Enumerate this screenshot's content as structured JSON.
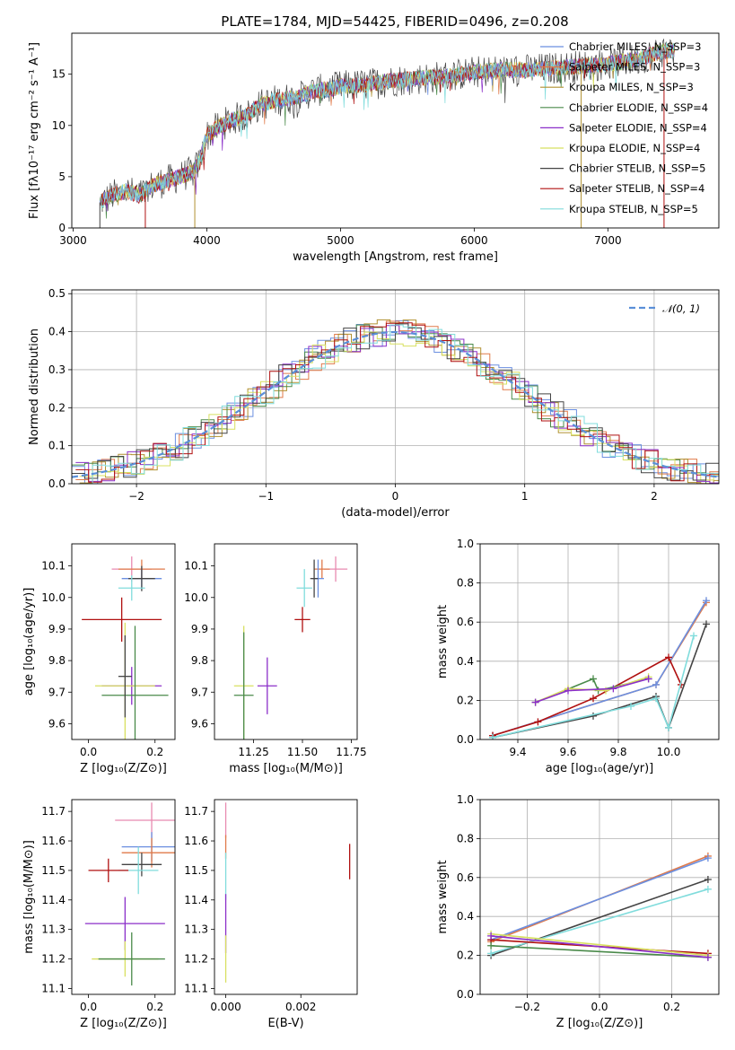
{
  "figure": {
    "title": "PLATE=1784, MJD=54425, FIBERID=0496, z=0.208"
  },
  "colors": {
    "chabrier_miles": "#6b8fe0",
    "salpeter_miles": "#e07a4a",
    "kroupa_miles": "#b09030",
    "chabrier_elodie": "#4a8a4a",
    "salpeter_elodie": "#8b2fc9",
    "kroupa_elodie": "#d8e060",
    "chabrier_stelib": "#444444",
    "salpeter_stelib": "#b01010",
    "kroupa_stelib": "#80dcdc",
    "pink": "#e88ab0",
    "gaussian": "#5a8fd8",
    "grid": "#b0b0b0"
  },
  "chart_data": [
    {
      "id": "spectrum",
      "type": "line",
      "xlabel": "wavelength [Angstrom, rest frame]",
      "ylabel": "Flux [fλ10⁻¹⁷ erg cm⁻² s⁻¹ A⁻¹]",
      "xlim": [
        2990,
        7830
      ],
      "ylim": [
        0,
        19
      ],
      "xticks": [
        "3000",
        "4000",
        "5000",
        "6000",
        "7000"
      ],
      "yticks": [
        "0",
        "5",
        "10",
        "15"
      ],
      "grid": false,
      "legend_position": "top-right",
      "series": [
        {
          "name": "Chabrier MILES, N_SSP=3"
        },
        {
          "name": "Salpeter MILES, N_SSP=3"
        },
        {
          "name": "Kroupa MILES, N_SSP=3"
        },
        {
          "name": "Chabrier ELODIE, N_SSP=4"
        },
        {
          "name": "Salpeter ELODIE, N_SSP=4"
        },
        {
          "name": "Kroupa ELODIE, N_SSP=4"
        },
        {
          "name": "Chabrier STELIB, N_SSP=5"
        },
        {
          "name": "Salpeter STELIB, N_SSP=4"
        },
        {
          "name": "Kroupa STELIB, N_SSP=5"
        }
      ],
      "envelope": [
        [
          3200,
          2.5
        ],
        [
          3300,
          3.2
        ],
        [
          3400,
          3.6
        ],
        [
          3500,
          3.2
        ],
        [
          3600,
          4.2
        ],
        [
          3700,
          4.6
        ],
        [
          3800,
          5.0
        ],
        [
          3900,
          5.5
        ],
        [
          3950,
          6.5
        ],
        [
          4000,
          9.0
        ],
        [
          4100,
          10.0
        ],
        [
          4200,
          10.6
        ],
        [
          4300,
          11.0
        ],
        [
          4400,
          12.0
        ],
        [
          4500,
          12.4
        ],
        [
          4600,
          12.6
        ],
        [
          4700,
          12.8
        ],
        [
          4800,
          13.4
        ],
        [
          4900,
          13.5
        ],
        [
          5000,
          13.8
        ],
        [
          5200,
          14.0
        ],
        [
          5400,
          14.4
        ],
        [
          5600,
          14.6
        ],
        [
          5800,
          14.8
        ],
        [
          6000,
          15.2
        ],
        [
          6200,
          15.4
        ],
        [
          6400,
          15.4
        ],
        [
          6600,
          15.6
        ],
        [
          6800,
          15.8
        ],
        [
          7000,
          16.0
        ],
        [
          7200,
          16.4
        ],
        [
          7400,
          17.2
        ],
        [
          7500,
          17.4
        ]
      ]
    },
    {
      "id": "residuals",
      "type": "histogram",
      "xlabel": "(data-model)/error",
      "ylabel": "Normed distribution",
      "xlim": [
        -2.5,
        2.5
      ],
      "ylim": [
        0,
        0.51
      ],
      "xticks": [
        "−2",
        "−1",
        "0",
        "1",
        "2"
      ],
      "yticks": [
        "0.0",
        "0.1",
        "0.2",
        "0.3",
        "0.4",
        "0.5"
      ],
      "grid": true,
      "legend_label": "𝒩(0, 1)",
      "gaussian": {
        "mean": 0,
        "sigma": 1
      }
    },
    {
      "id": "age_vs_Z",
      "type": "scatter",
      "xlabel": "Z [log₁₀(Z/Z⊙)]",
      "ylabel": "age  [log₁₀(age/yr)]",
      "xlim": [
        -0.05,
        0.26
      ],
      "ylim": [
        9.55,
        10.17
      ],
      "xticks": [
        "0.0",
        "0.2"
      ],
      "yticks": [
        "9.6",
        "9.7",
        "9.8",
        "9.9",
        "10.0",
        "10.1"
      ],
      "points": [
        {
          "c": "pink",
          "x": 0.13,
          "xe": 0.06,
          "y": 10.09,
          "ye": 0.04
        },
        {
          "c": "salpeter_miles",
          "x": 0.16,
          "xe": 0.07,
          "y": 10.09,
          "ye": 0.03
        },
        {
          "c": "chabrier_miles",
          "x": 0.16,
          "xe": 0.06,
          "y": 10.06,
          "ye": 0.03
        },
        {
          "c": "chabrier_stelib",
          "x": 0.16,
          "xe": 0.04,
          "y": 10.06,
          "ye": 0.04
        },
        {
          "c": "kroupa_stelib",
          "x": 0.13,
          "xe": 0.04,
          "y": 10.03,
          "ye": 0.04
        },
        {
          "c": "salpeter_stelib",
          "x": 0.1,
          "xe": 0.12,
          "y": 9.93,
          "ye": 0.07
        },
        {
          "c": "salpeter_elodie",
          "x": 0.13,
          "xe": 0.09,
          "y": 9.72,
          "ye": 0.06
        },
        {
          "c": "kroupa_elodie",
          "x": 0.11,
          "xe": 0.09,
          "y": 9.72,
          "ye": 0.2
        },
        {
          "c": "chabrier_elodie",
          "x": 0.14,
          "xe": 0.1,
          "y": 9.69,
          "ye": 0.22
        },
        {
          "c": "chabrier_stelib",
          "x": 0.11,
          "xe": 0.02,
          "y": 9.75,
          "ye": 0.13
        }
      ]
    },
    {
      "id": "age_vs_mass",
      "type": "scatter",
      "xlabel": "mass [log₁₀(M/M⊙)]",
      "xlim": [
        11.05,
        11.78
      ],
      "ylim": [
        9.55,
        10.17
      ],
      "xticks": [
        "11.25",
        "11.50",
        "11.75"
      ],
      "yticks": [
        "9.6",
        "9.7",
        "9.8",
        "9.9",
        "10.0",
        "10.1"
      ],
      "points": [
        {
          "c": "pink",
          "x": 11.67,
          "xe": 0.06,
          "y": 10.09,
          "ye": 0.04
        },
        {
          "c": "salpeter_miles",
          "x": 11.6,
          "xe": 0.04,
          "y": 10.09,
          "ye": 0.03
        },
        {
          "c": "chabrier_miles",
          "x": 11.58,
          "xe": 0.03,
          "y": 10.06,
          "ye": 0.06
        },
        {
          "c": "chabrier_stelib",
          "x": 11.56,
          "xe": 0.02,
          "y": 10.06,
          "ye": 0.06
        },
        {
          "c": "kroupa_stelib",
          "x": 11.51,
          "xe": 0.04,
          "y": 10.03,
          "ye": 0.06
        },
        {
          "c": "salpeter_stelib",
          "x": 11.5,
          "xe": 0.04,
          "y": 9.93,
          "ye": 0.04
        },
        {
          "c": "salpeter_elodie",
          "x": 11.32,
          "xe": 0.05,
          "y": 9.72,
          "ye": 0.09
        },
        {
          "c": "kroupa_elodie",
          "x": 11.2,
          "xe": 0.05,
          "y": 9.72,
          "ye": 0.19
        },
        {
          "c": "chabrier_elodie",
          "x": 11.2,
          "xe": 0.05,
          "y": 9.69,
          "ye": 0.2
        }
      ]
    },
    {
      "id": "weight_vs_age",
      "type": "line",
      "xlabel": "age  [log₁₀(age/yr)]",
      "ylabel": "mass weight",
      "xlim": [
        9.25,
        10.2
      ],
      "ylim": [
        0,
        1.0
      ],
      "xticks": [
        "9.4",
        "9.6",
        "9.8",
        "10.0"
      ],
      "yticks": [
        "0.0",
        "0.2",
        "0.4",
        "0.6",
        "0.8",
        "1.0"
      ],
      "grid": true,
      "series": [
        {
          "c": "salpeter_miles",
          "pts": [
            [
              9.3,
              0.02
            ],
            [
              9.95,
              0.28
            ],
            [
              10.15,
              0.7
            ]
          ]
        },
        {
          "c": "chabrier_miles",
          "pts": [
            [
              9.3,
              0.02
            ],
            [
              9.95,
              0.28
            ],
            [
              10.15,
              0.71
            ]
          ]
        },
        {
          "c": "salpeter_stelib",
          "pts": [
            [
              9.3,
              0.02
            ],
            [
              9.48,
              0.09
            ],
            [
              9.7,
              0.21
            ],
            [
              10.0,
              0.42
            ],
            [
              10.05,
              0.28
            ]
          ]
        },
        {
          "c": "chabrier_stelib",
          "pts": [
            [
              9.3,
              0.01
            ],
            [
              9.7,
              0.12
            ],
            [
              9.95,
              0.22
            ],
            [
              10.0,
              0.06
            ],
            [
              10.15,
              0.59
            ]
          ]
        },
        {
          "c": "kroupa_stelib",
          "pts": [
            [
              9.3,
              0.01
            ],
            [
              9.85,
              0.17
            ],
            [
              9.95,
              0.21
            ],
            [
              10.0,
              0.06
            ],
            [
              10.1,
              0.53
            ]
          ]
        },
        {
          "c": "chabrier_elodie",
          "pts": [
            [
              9.47,
              0.19
            ],
            [
              9.7,
              0.31
            ],
            [
              9.72,
              0.25
            ],
            [
              9.92,
              0.31
            ]
          ]
        },
        {
          "c": "kroupa_elodie",
          "pts": [
            [
              9.47,
              0.19
            ],
            [
              9.6,
              0.26
            ],
            [
              9.75,
              0.25
            ],
            [
              9.92,
              0.32
            ]
          ]
        },
        {
          "c": "salpeter_elodie",
          "pts": [
            [
              9.47,
              0.19
            ],
            [
              9.6,
              0.25
            ],
            [
              9.78,
              0.26
            ],
            [
              9.92,
              0.31
            ]
          ]
        }
      ]
    },
    {
      "id": "mass_vs_Z",
      "type": "scatter",
      "xlabel": "Z [log₁₀(Z/Z⊙)]",
      "ylabel": "mass [log₁₀(M/M⊙)]",
      "xlim": [
        -0.05,
        0.26
      ],
      "ylim": [
        11.08,
        11.74
      ],
      "xticks": [
        "0.0",
        "0.2"
      ],
      "yticks": [
        "11.1",
        "11.2",
        "11.3",
        "11.4",
        "11.5",
        "11.6",
        "11.7"
      ],
      "points": [
        {
          "c": "pink",
          "x": 0.19,
          "xe": 0.11,
          "y": 11.67,
          "ye": 0.06
        },
        {
          "c": "chabrier_miles",
          "x": 0.19,
          "xe": 0.09,
          "y": 11.58,
          "ye": 0.05
        },
        {
          "c": "salpeter_miles",
          "x": 0.19,
          "xe": 0.09,
          "y": 11.56,
          "ye": 0.05
        },
        {
          "c": "chabrier_stelib",
          "x": 0.16,
          "xe": 0.06,
          "y": 11.52,
          "ye": 0.04
        },
        {
          "c": "kroupa_stelib",
          "x": 0.15,
          "xe": 0.06,
          "y": 11.5,
          "ye": 0.08
        },
        {
          "c": "salpeter_stelib",
          "x": 0.06,
          "xe": 0.06,
          "y": 11.5,
          "ye": 0.04
        },
        {
          "c": "salpeter_elodie",
          "x": 0.11,
          "xe": 0.12,
          "y": 11.32,
          "ye": 0.09
        },
        {
          "c": "kroupa_elodie",
          "x": 0.11,
          "xe": 0.1,
          "y": 11.2,
          "ye": 0.06
        },
        {
          "c": "chabrier_elodie",
          "x": 0.13,
          "xe": 0.1,
          "y": 11.2,
          "ye": 0.09
        }
      ]
    },
    {
      "id": "mass_vs_EBV",
      "type": "scatter",
      "xlabel": "E(B-V)",
      "xlim": [
        -0.0003,
        0.0035
      ],
      "ylim": [
        11.08,
        11.74
      ],
      "xticks": [
        "0.000",
        "0.002"
      ],
      "yticks": [
        "11.1",
        "11.2",
        "11.3",
        "11.4",
        "11.5",
        "11.6",
        "11.7"
      ],
      "points": [
        {
          "c": "pink",
          "x": 0.0,
          "xe": 0,
          "y": 11.67,
          "ye": 0.06
        },
        {
          "c": "salpeter_miles",
          "x": 0.0,
          "xe": 0,
          "y": 11.58,
          "ye": 0.04
        },
        {
          "c": "kroupa_stelib",
          "x": 0.0,
          "xe": 0,
          "y": 11.48,
          "ye": 0.08
        },
        {
          "c": "salpeter_elodie",
          "x": 0.0,
          "xe": 0,
          "y": 11.32,
          "ye": 0.1
        },
        {
          "c": "kroupa_elodie",
          "x": 0.0,
          "xe": 0,
          "y": 11.2,
          "ye": 0.08
        },
        {
          "c": "salpeter_stelib",
          "x": 0.0033,
          "xe": 0,
          "y": 11.53,
          "ye": 0.06
        }
      ]
    },
    {
      "id": "weight_vs_Z",
      "type": "line",
      "xlabel": "Z [log₁₀(Z/Z⊙)]",
      "ylabel": "mass weight",
      "xlim": [
        -0.33,
        0.33
      ],
      "ylim": [
        0,
        1.0
      ],
      "xticks": [
        "−0.2",
        "0.0",
        "0.2"
      ],
      "yticks": [
        "0.0",
        "0.2",
        "0.4",
        "0.6",
        "0.8",
        "1.0"
      ],
      "grid": true,
      "series": [
        {
          "c": "salpeter_miles",
          "pts": [
            [
              -0.3,
              0.27
            ],
            [
              0.3,
              0.71
            ]
          ]
        },
        {
          "c": "chabrier_miles",
          "pts": [
            [
              -0.3,
              0.28
            ],
            [
              0.3,
              0.7
            ]
          ]
        },
        {
          "c": "chabrier_stelib",
          "pts": [
            [
              -0.3,
              0.2
            ],
            [
              0.3,
              0.59
            ]
          ]
        },
        {
          "c": "kroupa_stelib",
          "pts": [
            [
              -0.3,
              0.21
            ],
            [
              0.3,
              0.54
            ]
          ]
        },
        {
          "c": "salpeter_stelib",
          "pts": [
            [
              -0.3,
              0.28
            ],
            [
              0.3,
              0.21
            ]
          ]
        },
        {
          "c": "chabrier_elodie",
          "pts": [
            [
              -0.3,
              0.25
            ],
            [
              0.3,
              0.19
            ]
          ]
        },
        {
          "c": "kroupa_elodie",
          "pts": [
            [
              -0.3,
              0.31
            ],
            [
              0.3,
              0.2
            ]
          ]
        },
        {
          "c": "salpeter_elodie",
          "pts": [
            [
              -0.3,
              0.3
            ],
            [
              0.3,
              0.19
            ]
          ]
        }
      ]
    }
  ]
}
